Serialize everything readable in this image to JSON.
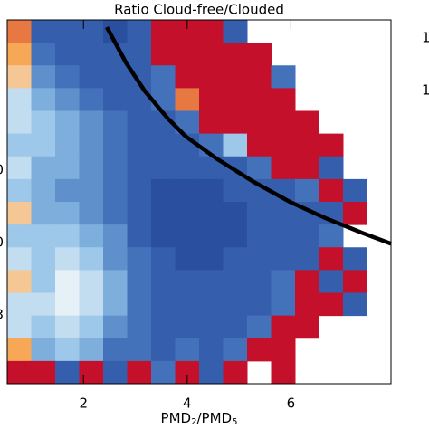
{
  "chart_data": {
    "type": "heatmap",
    "title": "Ratio Cloud-free/Clouded",
    "xlabel": [
      "PMD",
      "2",
      "/PMD",
      "5"
    ],
    "xlim": [
      0.53,
      7.93
    ],
    "xticks": [
      2,
      4,
      6
    ],
    "ylim": [
      16,
      0
    ],
    "left_labels": [
      "0",
      "0",
      "3"
    ],
    "right_labels": [
      "1",
      "1"
    ],
    "colorscale": [
      "#203f8f",
      "#3d6cb8",
      "#8fc0e6",
      "#f4f8fa",
      "#f6a24a",
      "#c4102a"
    ],
    "clim": [
      0.2,
      0.9
    ],
    "values": [
      [
        0.8,
        0.3,
        0.3,
        0.3,
        0.25,
        0.3,
        0.9,
        0.9,
        0.9,
        0.3,
        null,
        null,
        null,
        null,
        null,
        null
      ],
      [
        0.75,
        0.35,
        0.3,
        0.3,
        0.3,
        0.3,
        0.9,
        0.9,
        0.9,
        0.9,
        0.9,
        null,
        null,
        null,
        null,
        null
      ],
      [
        0.7,
        0.4,
        0.35,
        0.3,
        0.3,
        0.3,
        0.35,
        0.9,
        0.9,
        0.9,
        0.9,
        0.35,
        null,
        null,
        null,
        null
      ],
      [
        0.55,
        0.45,
        0.4,
        0.35,
        0.3,
        0.3,
        0.35,
        0.8,
        0.9,
        0.9,
        0.9,
        0.9,
        null,
        null,
        null,
        null
      ],
      [
        0.55,
        0.5,
        0.45,
        0.4,
        0.35,
        0.3,
        0.3,
        0.35,
        0.9,
        0.9,
        0.9,
        0.9,
        0.9,
        null,
        null,
        null
      ],
      [
        0.5,
        0.5,
        0.45,
        0.4,
        0.35,
        0.3,
        0.3,
        0.3,
        0.35,
        0.5,
        0.9,
        0.9,
        0.9,
        0.9,
        null,
        null
      ],
      [
        0.55,
        0.45,
        0.45,
        0.4,
        0.35,
        0.3,
        0.3,
        0.3,
        0.3,
        0.3,
        0.35,
        0.9,
        0.9,
        0.3,
        null,
        null
      ],
      [
        0.5,
        0.45,
        0.4,
        0.4,
        0.35,
        0.3,
        0.25,
        0.25,
        0.25,
        0.3,
        0.3,
        0.3,
        0.35,
        0.9,
        0.3,
        null
      ],
      [
        0.7,
        0.45,
        0.45,
        0.4,
        0.35,
        0.3,
        0.25,
        0.25,
        0.25,
        0.25,
        0.3,
        0.3,
        0.3,
        0.3,
        0.9,
        null
      ],
      [
        0.5,
        0.5,
        0.5,
        0.45,
        0.4,
        0.3,
        0.25,
        0.25,
        0.25,
        0.25,
        0.3,
        0.3,
        0.3,
        0.35,
        null,
        null
      ],
      [
        0.55,
        0.5,
        0.55,
        0.5,
        0.4,
        0.35,
        0.3,
        0.25,
        0.25,
        0.3,
        0.3,
        0.3,
        0.3,
        0.9,
        0.3,
        null
      ],
      [
        0.7,
        0.5,
        0.6,
        0.55,
        0.45,
        0.35,
        0.3,
        0.3,
        0.3,
        0.3,
        0.3,
        0.35,
        0.9,
        0.3,
        0.9,
        null
      ],
      [
        0.55,
        0.55,
        0.6,
        0.55,
        0.45,
        0.35,
        0.3,
        0.3,
        0.3,
        0.3,
        0.3,
        0.35,
        0.9,
        0.9,
        0.3,
        null
      ],
      [
        0.55,
        0.5,
        0.55,
        0.5,
        0.4,
        0.35,
        0.3,
        0.3,
        0.3,
        0.3,
        0.35,
        0.9,
        0.9,
        null,
        null,
        null
      ],
      [
        0.75,
        0.45,
        0.5,
        0.45,
        0.35,
        0.35,
        0.3,
        0.35,
        0.3,
        0.35,
        0.9,
        0.9,
        null,
        null,
        null,
        null
      ],
      [
        0.9,
        0.9,
        0.3,
        0.9,
        0.3,
        0.9,
        0.35,
        0.9,
        0.3,
        0.9,
        null,
        0.9,
        null,
        null,
        null,
        null
      ]
    ],
    "curve": {
      "color": "#000000",
      "x": [
        2.45,
        2.83,
        3.18,
        3.62,
        3.97,
        4.58,
        5.28,
        5.98,
        6.67,
        7.37,
        7.93
      ],
      "y": [
        0.32,
        1.92,
        3.12,
        4.32,
        5.12,
        6.12,
        7.12,
        8.0,
        8.72,
        9.36,
        9.84
      ]
    }
  }
}
